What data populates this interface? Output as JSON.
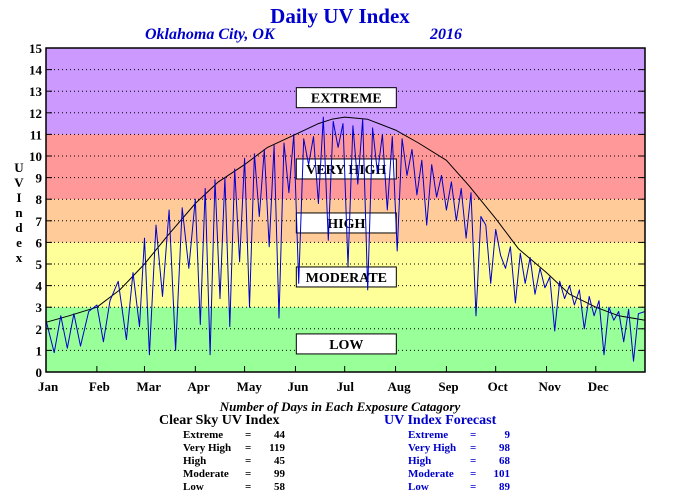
{
  "title": "Daily UV Index",
  "location": "Oklahoma City, OK",
  "year": "2016",
  "ylabel_letters": [
    "U",
    "V",
    "",
    "I",
    "n",
    "d",
    "e",
    "x"
  ],
  "summary_title": "Number of Days in Each Exposure Catagory",
  "clear_sky": {
    "title": "Clear Sky UV Index",
    "rows": [
      {
        "label": "Extreme",
        "value": "44"
      },
      {
        "label": "Very High",
        "value": "119"
      },
      {
        "label": "High",
        "value": "45"
      },
      {
        "label": "Moderate",
        "value": "99"
      },
      {
        "label": "Low",
        "value": "58"
      }
    ]
  },
  "forecast": {
    "title": "UV Index Forecast",
    "rows": [
      {
        "label": "Extreme",
        "value": "9"
      },
      {
        "label": "Very High",
        "value": "98"
      },
      {
        "label": "High",
        "value": "68"
      },
      {
        "label": "Moderate",
        "value": "101"
      },
      {
        "label": "Low",
        "value": "89"
      }
    ]
  },
  "chart_data": {
    "type": "line",
    "x_unit": "day of year",
    "xlim": [
      1,
      366
    ],
    "ylim": [
      0,
      15
    ],
    "yticks": [
      0,
      1,
      2,
      3,
      4,
      5,
      6,
      7,
      8,
      9,
      10,
      11,
      12,
      13,
      14,
      15
    ],
    "months": [
      {
        "label": "Jan",
        "day": 1
      },
      {
        "label": "Feb",
        "day": 32
      },
      {
        "label": "Mar",
        "day": 61
      },
      {
        "label": "Apr",
        "day": 92
      },
      {
        "label": "May",
        "day": 122
      },
      {
        "label": "Jun",
        "day": 153
      },
      {
        "label": "Jul",
        "day": 183
      },
      {
        "label": "Aug",
        "day": 214
      },
      {
        "label": "Sep",
        "day": 245
      },
      {
        "label": "Oct",
        "day": 275
      },
      {
        "label": "Nov",
        "day": 306
      },
      {
        "label": "Dec",
        "day": 336
      }
    ],
    "zones": [
      {
        "label": "LOW",
        "from": 0,
        "to": 3,
        "color": "#99ff99",
        "label_y": 1.3
      },
      {
        "label": "MODERATE",
        "from": 3,
        "to": 6,
        "color": "#ffff99",
        "label_y": 4.4
      },
      {
        "label": "HIGH",
        "from": 6,
        "to": 8,
        "color": "#ffcc99",
        "label_y": 6.9
      },
      {
        "label": "VERY HIGH",
        "from": 8,
        "to": 11,
        "color": "#ff9999",
        "label_y": 9.4
      },
      {
        "label": "EXTREME",
        "from": 11,
        "to": 15,
        "color": "#cc99ff",
        "label_y": 12.7
      }
    ],
    "series": [
      {
        "role": "clear-sky",
        "color": "#000000",
        "x": [
          1,
          15,
          32,
          46,
          61,
          75,
          92,
          106,
          122,
          136,
          153,
          167,
          175,
          183,
          197,
          214,
          228,
          245,
          259,
          275,
          289,
          306,
          320,
          336,
          350,
          366
        ],
        "y": [
          2.3,
          2.6,
          3.0,
          3.8,
          5.0,
          6.3,
          7.8,
          8.8,
          9.6,
          10.4,
          11.0,
          11.5,
          11.7,
          11.8,
          11.7,
          11.2,
          10.6,
          9.8,
          8.6,
          7.1,
          5.7,
          4.6,
          3.6,
          3.0,
          2.6,
          2.4
        ]
      },
      {
        "role": "forecast",
        "color": "#0000cc",
        "x": [
          1,
          6,
          10,
          14,
          18,
          22,
          27,
          32,
          36,
          40,
          45,
          50,
          54,
          58,
          61,
          64,
          68,
          72,
          76,
          80,
          84,
          88,
          92,
          95,
          98,
          101,
          104,
          107,
          110,
          113,
          116,
          119,
          122,
          125,
          128,
          131,
          134,
          137,
          140,
          143,
          146,
          149,
          152,
          155,
          158,
          161,
          164,
          167,
          170,
          173,
          176,
          179,
          182,
          185,
          188,
          191,
          194,
          197,
          200,
          203,
          206,
          209,
          212,
          215,
          218,
          221,
          224,
          227,
          230,
          233,
          236,
          239,
          242,
          245,
          248,
          251,
          254,
          257,
          260,
          263,
          266,
          269,
          272,
          275,
          278,
          281,
          284,
          287,
          290,
          293,
          296,
          299,
          302,
          305,
          308,
          311,
          314,
          317,
          320,
          323,
          326,
          329,
          332,
          335,
          338,
          341,
          344,
          347,
          350,
          353,
          356,
          359,
          362,
          366
        ],
        "y": [
          2.4,
          0.9,
          2.6,
          1.1,
          2.7,
          1.2,
          2.8,
          3.1,
          1.4,
          3.3,
          4.2,
          1.5,
          4.6,
          2.1,
          6.2,
          0.8,
          6.8,
          3.5,
          7.5,
          1.0,
          7.6,
          4.8,
          8.0,
          2.2,
          8.5,
          0.8,
          8.9,
          3.4,
          9.0,
          2.1,
          9.4,
          5.1,
          9.9,
          3.0,
          10.1,
          7.2,
          10.3,
          5.8,
          10.5,
          2.5,
          10.6,
          8.3,
          11.0,
          4.1,
          10.8,
          9.6,
          10.9,
          7.8,
          11.8,
          6.1,
          11.6,
          10.4,
          11.5,
          4.9,
          11.4,
          8.7,
          11.7,
          3.8,
          11.3,
          9.2,
          11.0,
          7.5,
          10.9,
          5.6,
          10.8,
          9.1,
          10.3,
          8.2,
          9.8,
          6.8,
          9.6,
          8.1,
          9.1,
          7.5,
          8.8,
          7.0,
          8.5,
          6.2,
          8.3,
          2.6,
          7.2,
          6.8,
          4.1,
          6.6,
          5.4,
          4.8,
          5.8,
          3.2,
          5.5,
          4.1,
          5.3,
          3.6,
          4.8,
          3.9,
          4.4,
          1.9,
          4.2,
          3.4,
          4.0,
          3.1,
          3.8,
          2.0,
          3.5,
          2.6,
          3.3,
          0.8,
          3.0,
          2.4,
          2.8,
          1.4,
          2.9,
          0.5,
          2.7,
          2.8
        ]
      }
    ]
  }
}
